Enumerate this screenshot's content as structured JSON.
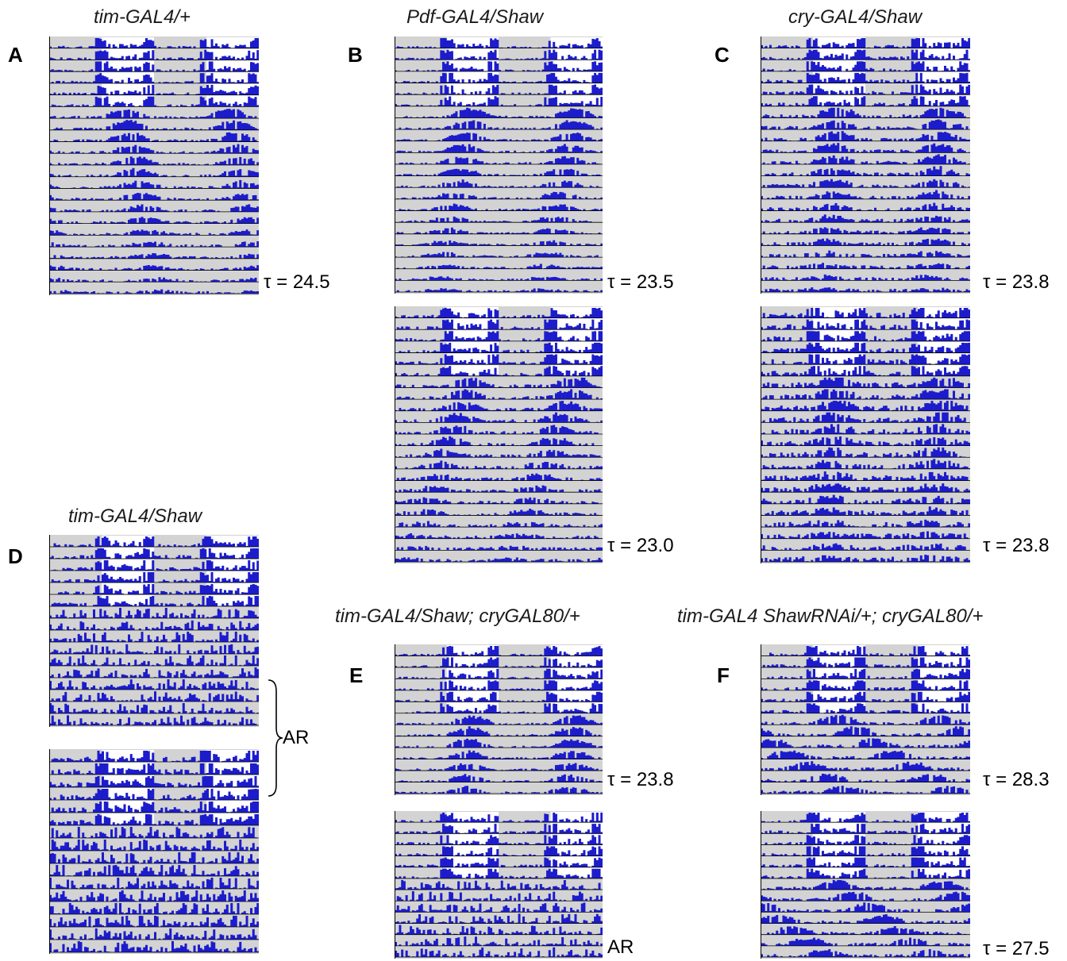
{
  "panels": {
    "A": {
      "letter": "A",
      "title": "tim-GAL4/+"
    },
    "B": {
      "letter": "B",
      "title": "Pdf-GAL4/Shaw"
    },
    "C": {
      "letter": "C",
      "title": "cry-GAL4/Shaw"
    },
    "D": {
      "letter": "D",
      "title": "tim-GAL4/Shaw",
      "bracket_label": "AR"
    },
    "E": {
      "letter": "E",
      "title": "tim-GAL4/Shaw; cryGAL80/+"
    },
    "F": {
      "letter": "F",
      "title": "tim-GAL4 ShawRNAi/+; cryGAL80/+"
    }
  },
  "colors": {
    "activity": "#1c1ccc",
    "dark_phase": "#d3d3d3",
    "light_phase": "#ffffff",
    "axis": "#000000"
  },
  "chart_data": [
    {
      "type": "actogram",
      "panel": "A",
      "label": "τ = 24.5",
      "period_h": 24.5,
      "ld_days": 6,
      "rows": 22,
      "density": 0.7,
      "seed": 11
    },
    {
      "type": "actogram",
      "panel": "B",
      "label": "τ = 23.5",
      "period_h": 23.5,
      "ld_days": 6,
      "rows": 22,
      "density": 0.6,
      "seed": 23
    },
    {
      "type": "actogram",
      "panel": "B",
      "label": "τ = 23.0",
      "period_h": 23.0,
      "ld_days": 6,
      "rows": 22,
      "density": 0.9,
      "seed": 31
    },
    {
      "type": "actogram",
      "panel": "C",
      "label": "τ = 23.8",
      "period_h": 23.8,
      "ld_days": 6,
      "rows": 22,
      "density": 1.0,
      "seed": 41
    },
    {
      "type": "actogram",
      "panel": "C",
      "label": "τ = 23.8",
      "period_h": 23.8,
      "ld_days": 6,
      "rows": 22,
      "density": 1.5,
      "seed": 47
    },
    {
      "type": "actogram",
      "panel": "D",
      "label": "AR",
      "period_h": null,
      "ld_days": 6,
      "rows": 16,
      "density": 1.0,
      "seed": 53
    },
    {
      "type": "actogram",
      "panel": "D",
      "label": "AR",
      "period_h": null,
      "ld_days": 6,
      "rows": 16,
      "density": 1.4,
      "seed": 59
    },
    {
      "type": "actogram",
      "panel": "E",
      "label": "τ = 23.8",
      "period_h": 23.8,
      "ld_days": 6,
      "rows": 13,
      "density": 0.6,
      "seed": 61
    },
    {
      "type": "actogram",
      "panel": "E",
      "label": "AR",
      "period_h": null,
      "ld_days": 6,
      "rows": 13,
      "density": 0.8,
      "seed": 67
    },
    {
      "type": "actogram",
      "panel": "F",
      "label": "τ = 28.3",
      "period_h": 28.3,
      "ld_days": 6,
      "rows": 13,
      "density": 0.9,
      "seed": 71
    },
    {
      "type": "actogram",
      "panel": "F",
      "label": "τ = 27.5",
      "period_h": 27.5,
      "ld_days": 6,
      "rows": 13,
      "density": 0.9,
      "seed": 79
    }
  ]
}
